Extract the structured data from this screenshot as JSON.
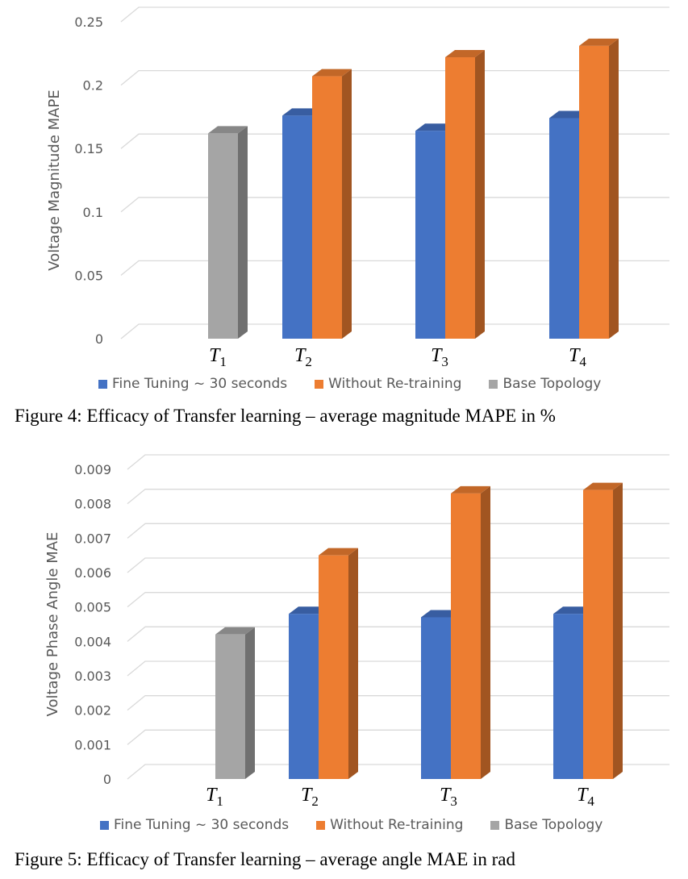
{
  "chart_data": [
    {
      "type": "bar",
      "ylabel": "Voltage Magnitude MAPE",
      "categories": [
        {
          "base": "T",
          "sub": "1"
        },
        {
          "base": "T",
          "sub": "2"
        },
        {
          "base": "T",
          "sub": "3"
        },
        {
          "base": "T",
          "sub": "4"
        }
      ],
      "yticks": [
        "0",
        "0.05",
        "0.1",
        "0.15",
        "0.2",
        "0.25"
      ],
      "ylim": [
        0,
        0.25
      ],
      "series": [
        {
          "name": "Fine Tuning ~ 30 seconds",
          "color": "#4472C4",
          "values": [
            null,
            0.176,
            0.164,
            0.174
          ]
        },
        {
          "name": "Without Re-training",
          "color": "#ED7D31",
          "values": [
            null,
            0.207,
            0.222,
            0.231
          ]
        },
        {
          "name": "Base Topology",
          "color": "#A5A5A5",
          "values": [
            0.162,
            null,
            null,
            null
          ]
        }
      ],
      "legend": "bottom",
      "grid": true,
      "caption": "Figure 4: Efficacy of Transfer learning – average magnitude MAPE in %"
    },
    {
      "type": "bar",
      "ylabel": "Voltage Phase Angle MAE",
      "categories": [
        {
          "base": "T",
          "sub": "1"
        },
        {
          "base": "T",
          "sub": "2"
        },
        {
          "base": "T",
          "sub": "3"
        },
        {
          "base": "T",
          "sub": "4"
        }
      ],
      "yticks": [
        "0",
        "0.001",
        "0.002",
        "0.003",
        "0.004",
        "0.005",
        "0.006",
        "0.007",
        "0.008",
        "0.009"
      ],
      "ylim": [
        0,
        0.009
      ],
      "series": [
        {
          "name": "Fine Tuning ~ 30 seconds",
          "color": "#4472C4",
          "values": [
            null,
            0.0048,
            0.0047,
            0.0048
          ]
        },
        {
          "name": "Without Re-training",
          "color": "#ED7D31",
          "values": [
            null,
            0.0065,
            0.0083,
            0.0084
          ]
        },
        {
          "name": "Base Topology",
          "color": "#A5A5A5",
          "values": [
            0.0042,
            null,
            null,
            null
          ]
        }
      ],
      "legend": "bottom",
      "grid": true,
      "caption": "Figure 5: Efficacy of Transfer learning – average angle MAE in rad"
    }
  ]
}
